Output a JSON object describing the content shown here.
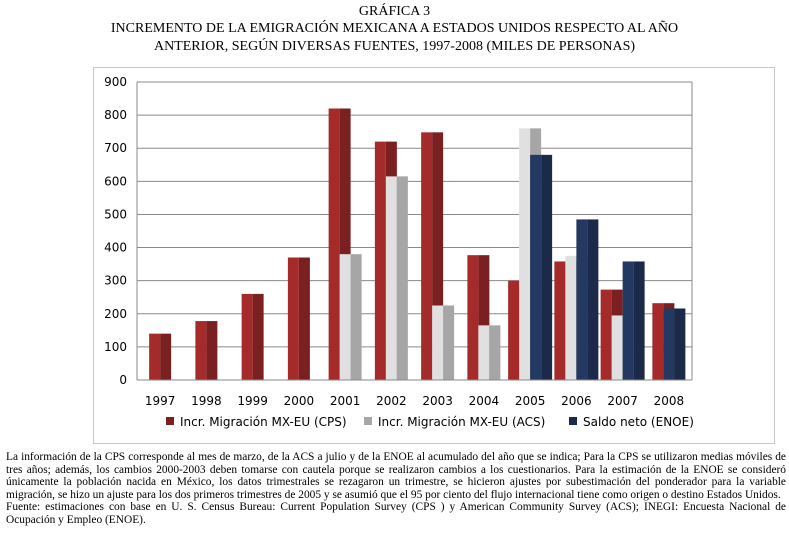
{
  "header": {
    "label": "GRÁFICA 3",
    "title_line1": "INCREMENTO DE LA EMIGRACIÓN MEXICANA A ESTADOS UNIDOS RESPECTO AL AÑO",
    "title_line2": "ANTERIOR, SEGÚN DIVERSAS FUENTES, 1997-2008 (MILES DE PERSONAS)"
  },
  "chart_data": {
    "type": "bar",
    "title": "INCREMENTO DE LA EMIGRACIÓN MEXICANA A ESTADOS UNIDOS RESPECTO AL AÑO ANTERIOR, SEGÚN DIVERSAS FUENTES, 1997-2008 (MILES DE PERSONAS)",
    "categories": [
      "1997",
      "1998",
      "1999",
      "2000",
      "2001",
      "2002",
      "2003",
      "2004",
      "2005",
      "2006",
      "2007",
      "2008"
    ],
    "series": [
      {
        "name": "Incr. Migración MX-EU (CPS)",
        "color": "#7a2020",
        "values": [
          140,
          178,
          260,
          370,
          820,
          720,
          748,
          377,
          300,
          358,
          273,
          232
        ]
      },
      {
        "name": "Incr. Migración MX-EU (ACS)",
        "color": "#a6a6a6",
        "values": [
          null,
          null,
          null,
          null,
          380,
          615,
          225,
          165,
          760,
          375,
          195,
          null
        ]
      },
      {
        "name": "Saldo neto (ENOE)",
        "color": "#1a2a48",
        "values": [
          null,
          null,
          null,
          null,
          null,
          null,
          null,
          null,
          680,
          485,
          358,
          216
        ]
      }
    ],
    "ylim": [
      0,
      900
    ],
    "yticks": [
      "0",
      "100",
      "200",
      "300",
      "400",
      "500",
      "600",
      "700",
      "800",
      "900"
    ],
    "grid": false,
    "legend_position": "bottom"
  },
  "notes": {
    "paragraph1": "La información de la CPS corresponde al mes de marzo, de la ACS a julio y de la ENOE al acumulado del año que se indica; Para la CPS se utilizaron medias móviles de tres años; además, los cambios 2000-2003 deben tomarse con cautela porque se realizaron cambios a los cuestionarios. Para la estimación de la ENOE se consideró únicamente la población nacida en México, los datos trimestrales se rezagaron un trimestre, se hicieron ajustes por subestimación del ponderador para la variable migración, se hizo un ajuste para los dos primeros trimestres de 2005 y se asumió que el 95 por ciento del flujo internacional tiene como origen o destino Estados Unidos.",
    "source": "Fuente: estimaciones con base en U. S. Census Bureau: Current Population Survey (CPS ) y American Community Survey (ACS); INEGI: Encuesta Nacional de Ocupación y Empleo (ENOE)."
  }
}
